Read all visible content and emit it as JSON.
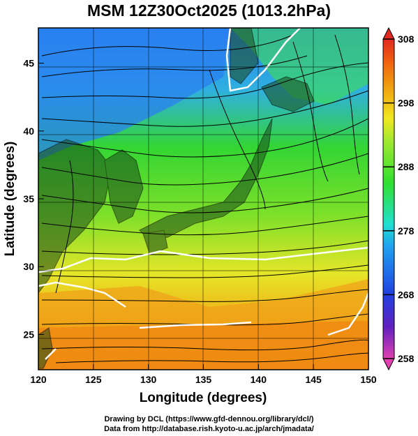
{
  "title": "MSM 12Z30Oct2025 (1013.2hPa)",
  "map": {
    "xlabel": "Longitude (degrees)",
    "ylabel": "Latitude  (degrees)",
    "xlim": [
      120,
      150
    ],
    "ylim": [
      22.4,
      47.6
    ],
    "x_ticks": [
      "120",
      "125",
      "130",
      "135",
      "140",
      "145",
      "150"
    ],
    "y_ticks": [
      "25",
      "30",
      "35",
      "40",
      "45"
    ],
    "x_tick_values": [
      120,
      125,
      130,
      135,
      140,
      145,
      150
    ],
    "y_tick_values": [
      25,
      30,
      35,
      40,
      45
    ],
    "field": "temperature (K) shading with wind streamlines and white contour",
    "colors": {
      "cold": "#2a7ef0",
      "cool": "#22c8e8",
      "mild": "#33d633",
      "warm": "#e6e628",
      "hot": "#f08a10",
      "land": "#000000",
      "contour": "#ffffff"
    }
  },
  "colorbar": {
    "labels": [
      "308",
      "298",
      "288",
      "278",
      "268",
      "258"
    ],
    "min": 258,
    "max": 308,
    "colors": [
      "#e040b0",
      "#6020c0",
      "#2040e0",
      "#20a0f0",
      "#20e0d0",
      "#30e030",
      "#a0e830",
      "#f0e820",
      "#f0a010",
      "#f06010",
      "#e02820"
    ]
  },
  "credits": {
    "line1": "Drawing by DCL (https://www.gfd-dennou.org/library/dcl/)",
    "line2": "Data from http://database.rish.kyoto-u.ac.jp/arch/jmadata/"
  }
}
